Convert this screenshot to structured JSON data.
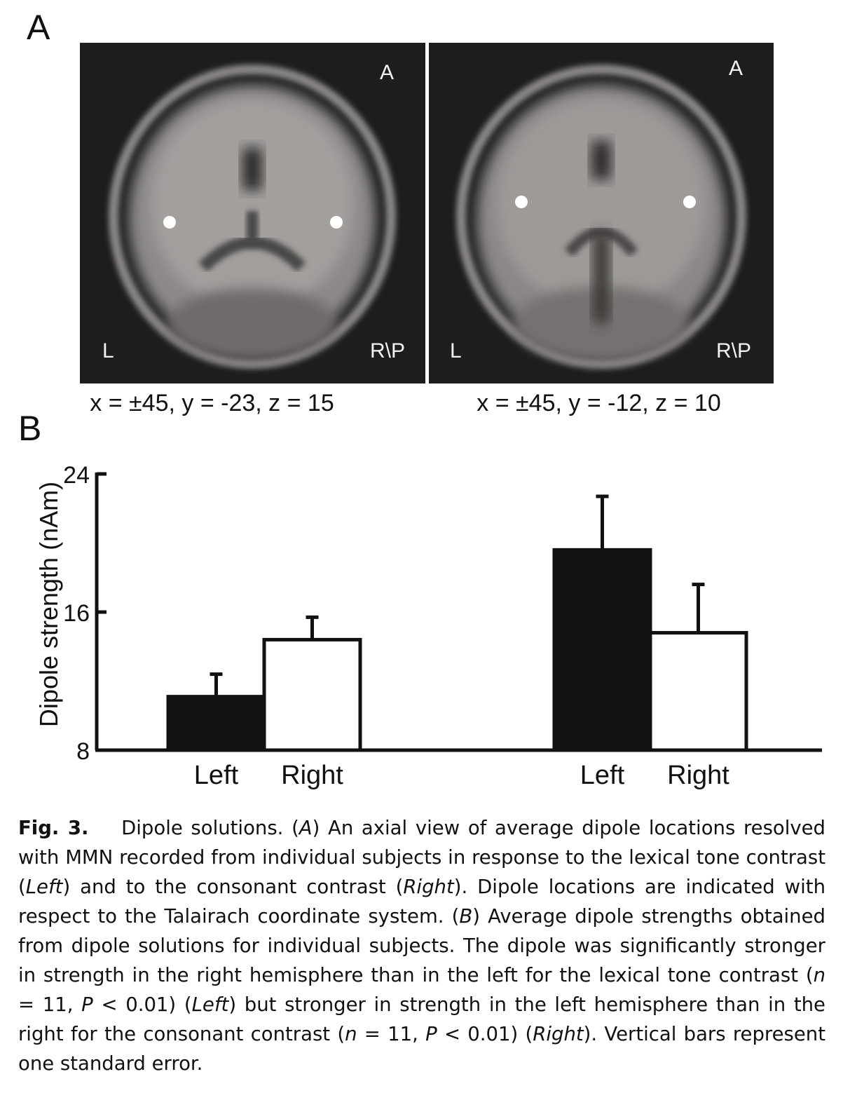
{
  "figure": {
    "panel_a_label": "A",
    "panel_b_label": "B"
  },
  "mri_images": [
    {
      "anterior": "A",
      "left": "L",
      "right_posterior": "R\\P",
      "coordinates": "x = ±45, y = -23, z = 15"
    },
    {
      "anterior": "A",
      "left": "L",
      "right_posterior": "R\\P",
      "coordinates": "x = ±45, y = -12, z = 10"
    }
  ],
  "chart_data": {
    "type": "bar",
    "ylabel": "Dipole strength (nAm)",
    "ylim": [
      8,
      24
    ],
    "yticks": [
      8,
      16,
      24
    ],
    "groups": [
      {
        "bars": [
          {
            "label": "Left",
            "value": 11.1,
            "error": 1.3,
            "fill": "#111111"
          },
          {
            "label": "Right",
            "value": 14.4,
            "error": 1.3,
            "fill": "#ffffff"
          }
        ]
      },
      {
        "bars": [
          {
            "label": "Left",
            "value": 19.6,
            "error": 3.1,
            "fill": "#111111"
          },
          {
            "label": "Right",
            "value": 14.8,
            "error": 2.8,
            "fill": "#ffffff"
          }
        ]
      }
    ]
  },
  "caption": {
    "fig_label": "Fig. 3.",
    "seg1": "Dipole solutions. (",
    "i1": "A",
    "seg2": ") An axial view of average dipole locations resolved with MMN recorded from individual subjects in response to the lexical tone contrast (",
    "i2": "Left",
    "seg3": ") and to the consonant contrast (",
    "i3": "Right",
    "seg4": "). Dipole locations are indicated with respect to the Talairach coordinate system. (",
    "i4": "B",
    "seg5": ") Average dipole strengths obtained from dipole solutions for individual subjects. The dipole was significantly stronger in strength in the right hemisphere than in the left for the lexical tone contrast (",
    "i5": "n",
    "seg6": " = 11, ",
    "i6": "P",
    "seg7": " < 0.01) (",
    "i7": "Left",
    "seg8": ") but stronger in strength in the left hemisphere than in the right for the consonant contrast (",
    "i8": "n",
    "seg9": " = 11, ",
    "i9": "P",
    "seg10": " < 0.01) (",
    "i10": "Right",
    "seg11": "). Vertical bars represent one standard error."
  }
}
